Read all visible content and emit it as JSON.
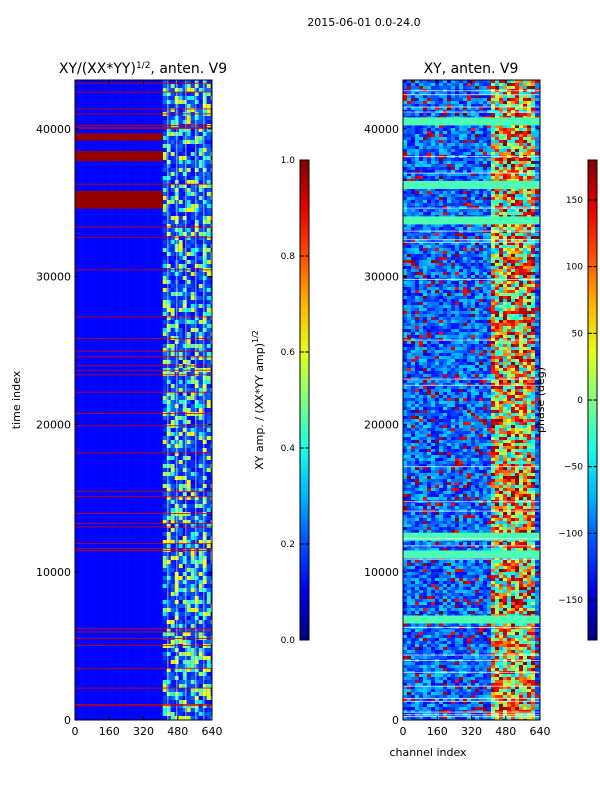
{
  "suptitle": "2015-06-01 0.0-24.0",
  "chart_data": [
    {
      "type": "heatmap",
      "title": "XY/(XX*YY)^1/2, anten. V9",
      "title_main": "XY/(XX*YY)",
      "title_sup": "1/2",
      "title_tail": ", anten. V9",
      "xlabel": "",
      "ylabel": "time index",
      "xlim": [
        0,
        640
      ],
      "ylim": [
        0,
        43300
      ],
      "xticks": [
        0,
        160,
        320,
        480,
        640
      ],
      "yticks": [
        0,
        10000,
        20000,
        30000,
        40000
      ],
      "colorbar": {
        "label": "XY amp. / (XX*YY amp)^1/2",
        "label_main": "XY amp. / (XX*YY amp)",
        "label_sup": "1/2",
        "range": [
          0.0,
          1.0
        ],
        "ticks": [
          "0.0",
          "0.2",
          "0.4",
          "0.6",
          "0.8",
          "1.0"
        ],
        "tick_values": [
          0.0,
          0.2,
          0.4,
          0.6,
          0.8,
          1.0
        ],
        "colormap": "jet"
      },
      "bright_band_channels": [
        410,
        640
      ],
      "saturated_time_ranges": [
        [
          34600,
          35800
        ],
        [
          39200,
          39700
        ],
        [
          37800,
          38500
        ]
      ]
    },
    {
      "type": "heatmap",
      "title": "XY, anten. V9",
      "xlabel": "channel index",
      "ylabel": "",
      "xlim": [
        0,
        640
      ],
      "ylim": [
        0,
        43300
      ],
      "xticks": [
        0,
        160,
        320,
        480,
        640
      ],
      "yticks": [
        0,
        10000,
        20000,
        30000,
        40000
      ],
      "colorbar": {
        "label": "phase (deg)",
        "range": [
          -180,
          180
        ],
        "ticks": [
          "150",
          "100",
          "50",
          "0",
          "−50",
          "−100",
          "−150"
        ],
        "tick_values": [
          150,
          100,
          50,
          0,
          -50,
          -100,
          -150
        ],
        "colormap": "jet"
      },
      "bright_band_channels": [
        400,
        630
      ],
      "horizontal_stripe_times": [
        11200,
        12400,
        6800,
        33800,
        36200,
        40500
      ]
    }
  ]
}
